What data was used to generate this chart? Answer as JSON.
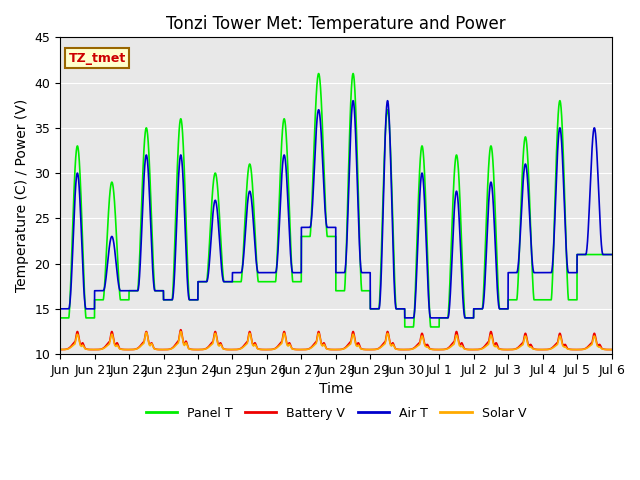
{
  "title": "Tonzi Tower Met: Temperature and Power",
  "xlabel": "Time",
  "ylabel": "Temperature (C) / Power (V)",
  "ylim": [
    10,
    45
  ],
  "xlim_start": 0.0,
  "xlim_end": 16.0,
  "annotation_text": "TZ_tmet",
  "annotation_color": "#cc0000",
  "annotation_bg": "#ffffcc",
  "annotation_border": "#996600",
  "bg_color": "#e8e8e8",
  "panel_t_color": "#00ee00",
  "battery_v_color": "#ee0000",
  "air_t_color": "#0000cc",
  "solar_v_color": "#ffaa00",
  "xtick_positions": [
    0,
    1,
    2,
    3,
    4,
    5,
    6,
    7,
    8,
    9,
    10,
    11,
    12,
    13,
    14,
    15,
    16
  ],
  "xtick_labels": [
    "Jun",
    "Jun 21",
    "Jun 22",
    "Jun 23",
    "Jun 24",
    "Jun 25",
    "Jun 26",
    "Jun 27",
    "Jun 28",
    "Jun 29",
    "Jun 30",
    "Jul 1",
    "Jul 2",
    "Jul 3",
    "Jul 4",
    "Jul 5",
    "Jul 6"
  ],
  "num_days": 16,
  "samples_per_day": 288,
  "panel_t_day_peaks": [
    33,
    29,
    35,
    36,
    30,
    31,
    36,
    41,
    41,
    37,
    33,
    32,
    33,
    34,
    38,
    21
  ],
  "panel_t_night_mins": [
    14,
    16,
    17,
    16,
    18,
    18,
    18,
    23,
    17,
    15,
    13,
    14,
    15,
    16,
    16,
    21
  ],
  "air_t_day_peaks": [
    30,
    23,
    32,
    32,
    27,
    28,
    32,
    37,
    38,
    38,
    30,
    28,
    29,
    31,
    35,
    35
  ],
  "air_t_night_mins": [
    15,
    17,
    17,
    16,
    18,
    19,
    19,
    24,
    19,
    15,
    14,
    14,
    15,
    19,
    19,
    21
  ],
  "legend_labels": [
    "Panel T",
    "Battery V",
    "Air T",
    "Solar V"
  ],
  "legend_colors": [
    "#00ee00",
    "#ee0000",
    "#0000cc",
    "#ffaa00"
  ],
  "lw": 1.2,
  "title_fontsize": 12,
  "axis_label_fontsize": 10,
  "tick_fontsize": 9,
  "yticks": [
    10,
    15,
    20,
    25,
    30,
    35,
    40,
    45
  ]
}
